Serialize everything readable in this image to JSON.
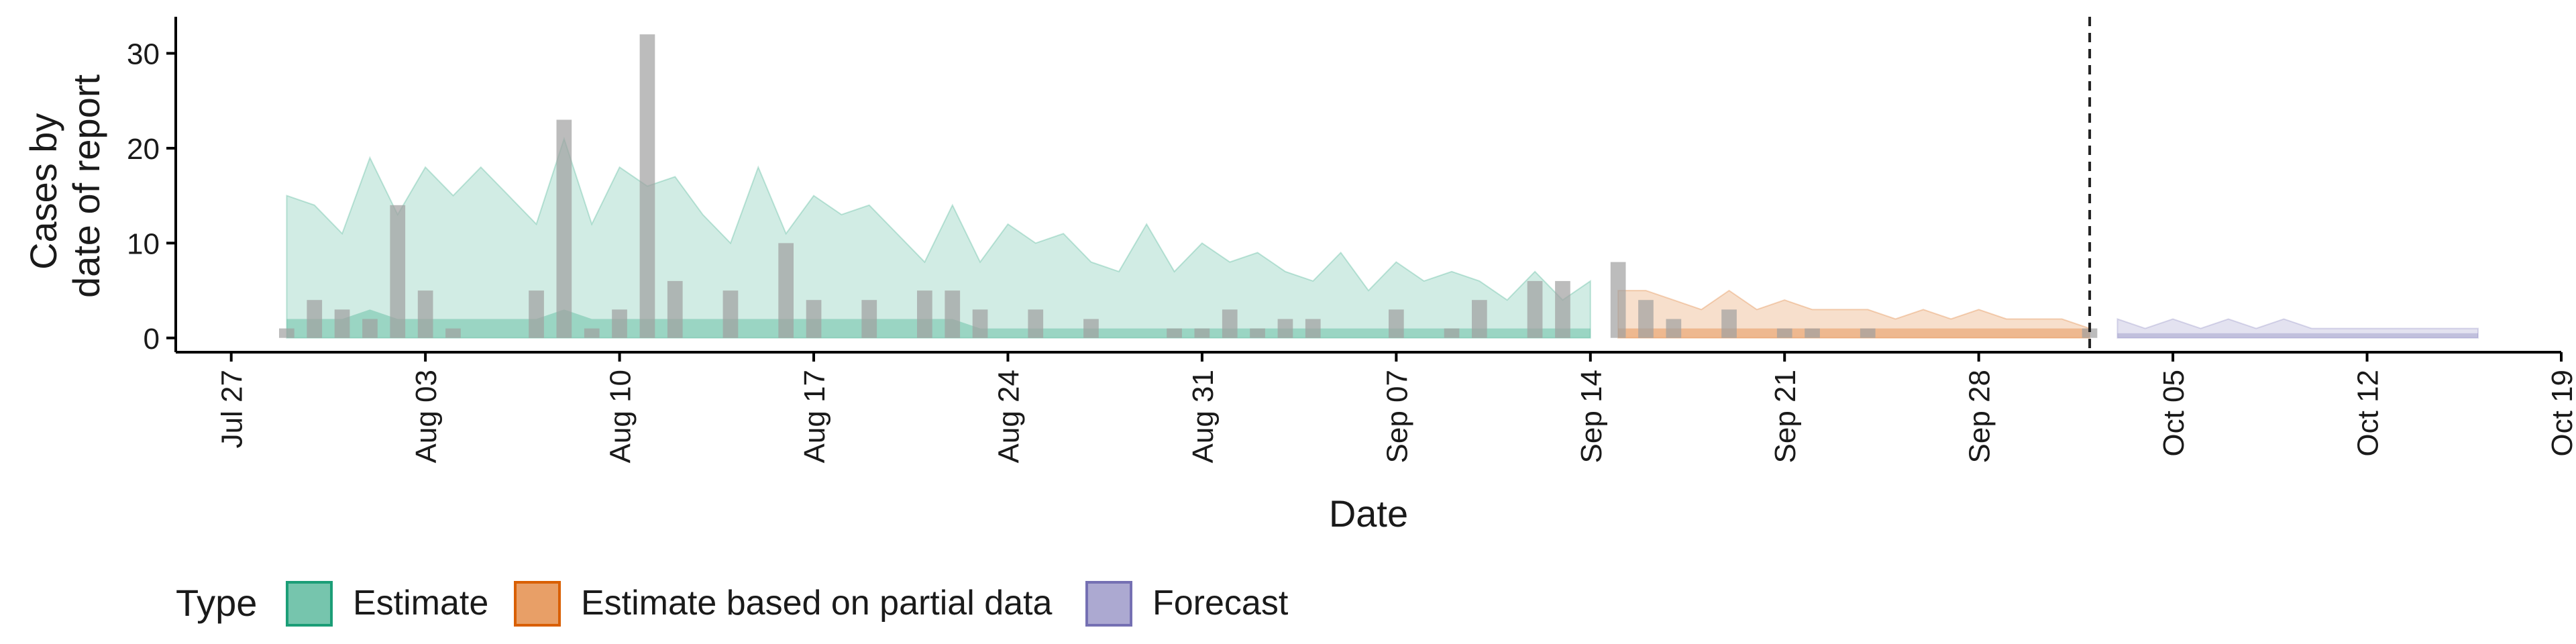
{
  "chart_data": {
    "type": "area",
    "xlabel": "Date",
    "ylabel": [
      "Cases by",
      "date of report"
    ],
    "ylim": [
      -1.5,
      33.5
    ],
    "yticks": [
      0,
      10,
      20,
      30
    ],
    "xlim": [
      "2020-07-25",
      "2020-10-19"
    ],
    "x_ticks": [
      {
        "date": "2020-07-27",
        "label": "Jul 27"
      },
      {
        "date": "2020-08-03",
        "label": "Aug 03"
      },
      {
        "date": "2020-08-10",
        "label": "Aug 10"
      },
      {
        "date": "2020-08-17",
        "label": "Aug 17"
      },
      {
        "date": "2020-08-24",
        "label": "Aug 24"
      },
      {
        "date": "2020-08-31",
        "label": "Aug 31"
      },
      {
        "date": "2020-09-07",
        "label": "Sep 07"
      },
      {
        "date": "2020-09-14",
        "label": "Sep 14"
      },
      {
        "date": "2020-09-21",
        "label": "Sep 21"
      },
      {
        "date": "2020-09-28",
        "label": "Sep 28"
      },
      {
        "date": "2020-10-05",
        "label": "Oct 05"
      },
      {
        "date": "2020-10-12",
        "label": "Oct 12"
      },
      {
        "date": "2020-10-19",
        "label": "Oct 19"
      }
    ],
    "forecast_date": "2020-10-02",
    "colors": {
      "Estimate": "#1b9e77",
      "Estimate based on partial data": "#d95f02",
      "Forecast": "#7570b3",
      "reported_cases": "#a0a0a0"
    },
    "legend_title": "Type",
    "legend_position": "bottom",
    "legend": [
      "Estimate",
      "Estimate based on partial data",
      "Forecast"
    ],
    "reported_cases": {
      "dates": [
        "2020-07-29",
        "2020-07-30",
        "2020-07-31",
        "2020-08-01",
        "2020-08-02",
        "2020-08-03",
        "2020-08-04",
        "2020-08-05",
        "2020-08-06",
        "2020-08-07",
        "2020-08-08",
        "2020-08-09",
        "2020-08-10",
        "2020-08-11",
        "2020-08-12",
        "2020-08-13",
        "2020-08-14",
        "2020-08-15",
        "2020-08-16",
        "2020-08-17",
        "2020-08-18",
        "2020-08-19",
        "2020-08-20",
        "2020-08-21",
        "2020-08-22",
        "2020-08-23",
        "2020-08-24",
        "2020-08-25",
        "2020-08-26",
        "2020-08-27",
        "2020-08-28",
        "2020-08-29",
        "2020-08-30",
        "2020-08-31",
        "2020-09-01",
        "2020-09-02",
        "2020-09-03",
        "2020-09-04",
        "2020-09-05",
        "2020-09-06",
        "2020-09-07",
        "2020-09-08",
        "2020-09-09",
        "2020-09-10",
        "2020-09-11",
        "2020-09-12",
        "2020-09-13",
        "2020-09-14",
        "2020-09-15",
        "2020-09-16",
        "2020-09-17",
        "2020-09-18",
        "2020-09-19",
        "2020-09-20",
        "2020-09-21",
        "2020-09-22",
        "2020-09-23",
        "2020-09-24",
        "2020-09-25",
        "2020-09-26",
        "2020-09-27",
        "2020-09-28",
        "2020-09-29",
        "2020-09-30",
        "2020-10-01",
        "2020-10-02"
      ],
      "values": [
        1,
        4,
        3,
        2,
        14,
        5,
        1,
        0,
        0,
        5,
        23,
        1,
        3,
        32,
        6,
        0,
        5,
        0,
        10,
        4,
        0,
        4,
        0,
        5,
        5,
        3,
        0,
        3,
        0,
        2,
        0,
        0,
        1,
        1,
        3,
        1,
        2,
        2,
        0,
        0,
        3,
        0,
        1,
        4,
        0,
        6,
        6,
        0,
        8,
        4,
        2,
        0,
        3,
        0,
        1,
        1,
        0,
        1,
        0,
        0,
        0,
        0,
        0,
        0,
        0,
        1
      ]
    },
    "series": [
      {
        "name": "Estimate",
        "dates": [
          "2020-07-29",
          "2020-07-30",
          "2020-07-31",
          "2020-08-01",
          "2020-08-02",
          "2020-08-03",
          "2020-08-04",
          "2020-08-05",
          "2020-08-06",
          "2020-08-07",
          "2020-08-08",
          "2020-08-09",
          "2020-08-10",
          "2020-08-11",
          "2020-08-12",
          "2020-08-13",
          "2020-08-14",
          "2020-08-15",
          "2020-08-16",
          "2020-08-17",
          "2020-08-18",
          "2020-08-19",
          "2020-08-20",
          "2020-08-21",
          "2020-08-22",
          "2020-08-23",
          "2020-08-24",
          "2020-08-25",
          "2020-08-26",
          "2020-08-27",
          "2020-08-28",
          "2020-08-29",
          "2020-08-30",
          "2020-08-31",
          "2020-09-01",
          "2020-09-02",
          "2020-09-03",
          "2020-09-04",
          "2020-09-05",
          "2020-09-06",
          "2020-09-07",
          "2020-09-08",
          "2020-09-09",
          "2020-09-10",
          "2020-09-11",
          "2020-09-12",
          "2020-09-13",
          "2020-09-14"
        ],
        "outer_lower": [
          0,
          0,
          0,
          0,
          0,
          0,
          0,
          0,
          0,
          0,
          0,
          0,
          0,
          0,
          0,
          0,
          0,
          0,
          0,
          0,
          0,
          0,
          0,
          0,
          0,
          0,
          0,
          0,
          0,
          0,
          0,
          0,
          0,
          0,
          0,
          0,
          0,
          0,
          0,
          0,
          0,
          0,
          0,
          0,
          0,
          0,
          0,
          0
        ],
        "outer_upper": [
          15,
          14,
          11,
          19,
          13,
          18,
          15,
          18,
          15,
          12,
          21,
          12,
          18,
          16,
          17,
          13,
          10,
          18,
          11,
          15,
          13,
          14,
          11,
          8,
          14,
          8,
          12,
          10,
          11,
          8,
          7,
          12,
          7,
          10,
          8,
          9,
          7,
          6,
          9,
          5,
          8,
          6,
          7,
          6,
          4,
          7,
          4,
          6
        ],
        "inner_lower": [
          0,
          0,
          0,
          0,
          0,
          0,
          0,
          0,
          0,
          0,
          0,
          0,
          0,
          0,
          0,
          0,
          0,
          0,
          0,
          0,
          0,
          0,
          0,
          0,
          0,
          0,
          0,
          0,
          0,
          0,
          0,
          0,
          0,
          0,
          0,
          0,
          0,
          0,
          0,
          0,
          0,
          0,
          0,
          0,
          0,
          0,
          0,
          0
        ],
        "inner_upper": [
          2,
          2,
          2,
          3,
          2,
          2,
          2,
          2,
          2,
          2,
          3,
          2,
          2,
          2,
          2,
          2,
          2,
          2,
          2,
          2,
          2,
          2,
          2,
          2,
          2,
          1,
          1,
          1,
          1,
          1,
          1,
          1,
          1,
          1,
          1,
          1,
          1,
          1,
          1,
          1,
          1,
          1,
          1,
          1,
          1,
          1,
          1,
          1
        ]
      },
      {
        "name": "Estimate based on partial data",
        "dates": [
          "2020-09-15",
          "2020-09-16",
          "2020-09-17",
          "2020-09-18",
          "2020-09-19",
          "2020-09-20",
          "2020-09-21",
          "2020-09-22",
          "2020-09-23",
          "2020-09-24",
          "2020-09-25",
          "2020-09-26",
          "2020-09-27",
          "2020-09-28",
          "2020-09-29",
          "2020-09-30",
          "2020-10-01",
          "2020-10-02"
        ],
        "outer_lower": [
          0,
          0,
          0,
          0,
          0,
          0,
          0,
          0,
          0,
          0,
          0,
          0,
          0,
          0,
          0,
          0,
          0,
          0
        ],
        "outer_upper": [
          5,
          5,
          4,
          3,
          5,
          3,
          4,
          3,
          3,
          3,
          2,
          3,
          2,
          3,
          2,
          2,
          2,
          1
        ],
        "inner_lower": [
          0,
          0,
          0,
          0,
          0,
          0,
          0,
          0,
          0,
          0,
          0,
          0,
          0,
          0,
          0,
          0,
          0,
          0
        ],
        "inner_upper": [
          1,
          1,
          1,
          1,
          1,
          1,
          1,
          1,
          1,
          1,
          1,
          1,
          1,
          1,
          1,
          1,
          1,
          1
        ]
      },
      {
        "name": "Forecast",
        "dates": [
          "2020-10-03",
          "2020-10-04",
          "2020-10-05",
          "2020-10-06",
          "2020-10-07",
          "2020-10-08",
          "2020-10-09",
          "2020-10-10",
          "2020-10-11",
          "2020-10-12",
          "2020-10-13",
          "2020-10-14",
          "2020-10-15",
          "2020-10-16"
        ],
        "outer_lower": [
          0,
          0,
          0,
          0,
          0,
          0,
          0,
          0,
          0,
          0,
          0,
          0,
          0,
          0
        ],
        "outer_upper": [
          2,
          1,
          2,
          1,
          2,
          1,
          2,
          1,
          1,
          1,
          1,
          1,
          1,
          1
        ],
        "inner_lower": [
          0,
          0,
          0,
          0,
          0,
          0,
          0,
          0,
          0,
          0,
          0,
          0,
          0,
          0
        ],
        "inner_upper": [
          0.5,
          0.5,
          0.5,
          0.5,
          0.5,
          0.5,
          0.5,
          0.5,
          0.5,
          0.5,
          0.5,
          0.5,
          0.5,
          0.5
        ]
      }
    ]
  }
}
